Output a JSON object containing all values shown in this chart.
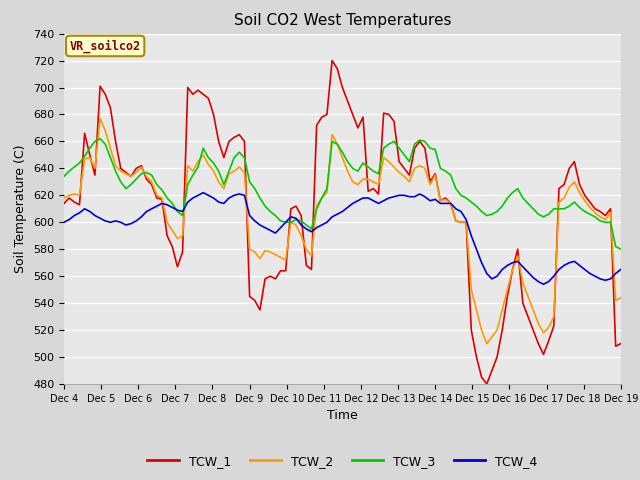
{
  "title": "Soil CO2 West Temperatures",
  "xlabel": "Time",
  "ylabel": "Soil Temperature (C)",
  "annotation": "VR_soilco2",
  "ylim": [
    480,
    740
  ],
  "yticks": [
    480,
    500,
    520,
    540,
    560,
    580,
    600,
    620,
    640,
    660,
    680,
    700,
    720,
    740
  ],
  "x_labels": [
    "Dec 4",
    "Dec 5",
    "Dec 6",
    "Dec 7",
    "Dec 8",
    "Dec 9",
    "Dec 10",
    "Dec 11",
    "Dec 12",
    "Dec 13",
    "Dec 14",
    "Dec 15",
    "Dec 16",
    "Dec 17",
    "Dec 18",
    "Dec 19"
  ],
  "series_names": [
    "TCW_1",
    "TCW_2",
    "TCW_3",
    "TCW_4"
  ],
  "colors": [
    "#dd0000",
    "#ff9900",
    "#00cc00",
    "#0000dd"
  ],
  "background_color": "#d8d8d8",
  "plot_bg_color": "#e8e8e8",
  "grid_color": "#ffffff",
  "TCW_1": [
    614,
    618,
    615,
    613,
    666,
    650,
    635,
    701,
    695,
    685,
    660,
    640,
    637,
    634,
    640,
    642,
    632,
    628,
    618,
    617,
    590,
    582,
    567,
    578,
    700,
    695,
    698,
    695,
    692,
    680,
    660,
    648,
    660,
    663,
    665,
    660,
    545,
    542,
    535,
    558,
    560,
    558,
    564,
    564,
    610,
    612,
    605,
    568,
    565,
    672,
    678,
    680,
    720,
    714,
    700,
    690,
    680,
    670,
    678,
    623,
    625,
    621,
    681,
    680,
    675,
    645,
    640,
    635,
    655,
    660,
    655,
    630,
    636,
    616,
    618,
    614,
    601,
    600,
    600,
    520,
    500,
    485,
    480,
    490,
    500,
    520,
    545,
    565,
    580,
    540,
    530,
    520,
    510,
    502,
    512,
    523,
    625,
    628,
    640,
    645,
    628,
    620,
    615,
    610,
    608,
    605,
    610,
    508,
    510
  ],
  "TCW_2": [
    618,
    620,
    621,
    620,
    647,
    648,
    640,
    677,
    668,
    655,
    642,
    638,
    636,
    634,
    637,
    641,
    634,
    630,
    620,
    618,
    600,
    594,
    588,
    590,
    642,
    638,
    645,
    650,
    643,
    638,
    630,
    625,
    636,
    638,
    641,
    637,
    580,
    578,
    573,
    579,
    578,
    576,
    574,
    572,
    600,
    598,
    590,
    580,
    575,
    612,
    618,
    622,
    665,
    658,
    648,
    638,
    630,
    628,
    632,
    632,
    630,
    628,
    648,
    645,
    641,
    637,
    634,
    630,
    640,
    642,
    640,
    628,
    635,
    616,
    617,
    614,
    601,
    600,
    600,
    550,
    535,
    520,
    510,
    515,
    520,
    535,
    550,
    565,
    575,
    555,
    545,
    535,
    525,
    518,
    522,
    530,
    615,
    618,
    626,
    630,
    622,
    616,
    611,
    607,
    604,
    602,
    607,
    542,
    544
  ],
  "TCW_3": [
    634,
    638,
    641,
    644,
    649,
    655,
    660,
    662,
    658,
    648,
    638,
    630,
    625,
    628,
    632,
    636,
    637,
    635,
    628,
    624,
    618,
    614,
    608,
    605,
    628,
    635,
    641,
    655,
    648,
    644,
    638,
    628,
    638,
    648,
    652,
    648,
    630,
    625,
    618,
    612,
    608,
    605,
    601,
    600,
    600,
    602,
    601,
    598,
    595,
    610,
    618,
    625,
    660,
    658,
    652,
    645,
    640,
    638,
    644,
    641,
    638,
    636,
    655,
    658,
    660,
    655,
    650,
    645,
    658,
    661,
    660,
    655,
    654,
    640,
    638,
    635,
    625,
    620,
    618,
    615,
    612,
    608,
    605,
    606,
    608,
    612,
    618,
    622,
    625,
    618,
    614,
    610,
    606,
    604,
    606,
    610,
    610,
    610,
    612,
    615,
    611,
    608,
    606,
    604,
    601,
    600,
    600,
    582,
    580
  ],
  "TCW_4": [
    600,
    602,
    605,
    607,
    610,
    608,
    605,
    603,
    601,
    600,
    601,
    600,
    598,
    599,
    601,
    604,
    608,
    610,
    612,
    614,
    613,
    611,
    609,
    608,
    615,
    618,
    620,
    622,
    620,
    618,
    615,
    614,
    618,
    620,
    621,
    620,
    605,
    601,
    598,
    596,
    594,
    592,
    596,
    600,
    604,
    603,
    598,
    595,
    593,
    596,
    598,
    600,
    604,
    606,
    608,
    611,
    614,
    616,
    618,
    618,
    616,
    614,
    616,
    618,
    619,
    620,
    620,
    619,
    619,
    621,
    619,
    616,
    617,
    614,
    614,
    614,
    610,
    608,
    602,
    590,
    580,
    570,
    562,
    558,
    560,
    565,
    568,
    570,
    571,
    567,
    563,
    559,
    556,
    554,
    556,
    560,
    565,
    568,
    570,
    571,
    568,
    565,
    562,
    560,
    558,
    557,
    558,
    562,
    565
  ]
}
